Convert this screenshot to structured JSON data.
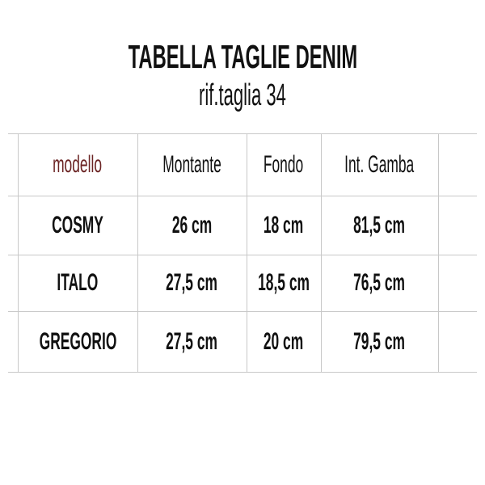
{
  "title": "TABELLA TAGLIE DENIM",
  "subtitle": "rif.taglia 34",
  "colors": {
    "model_header": "#6b2424",
    "text": "#111111",
    "grid": "#c8c8c8"
  },
  "table": {
    "headers": [
      "modello",
      "Montante",
      "Fondo",
      "Int. Gamba"
    ],
    "rows": [
      [
        "COSMY",
        "26 cm",
        "18 cm",
        "81,5 cm"
      ],
      [
        "ITALO",
        "27,5 cm",
        "18,5 cm",
        "76,5 cm"
      ],
      [
        "GREGORIO",
        "27,5 cm",
        "20 cm",
        "79,5 cm"
      ]
    ]
  }
}
